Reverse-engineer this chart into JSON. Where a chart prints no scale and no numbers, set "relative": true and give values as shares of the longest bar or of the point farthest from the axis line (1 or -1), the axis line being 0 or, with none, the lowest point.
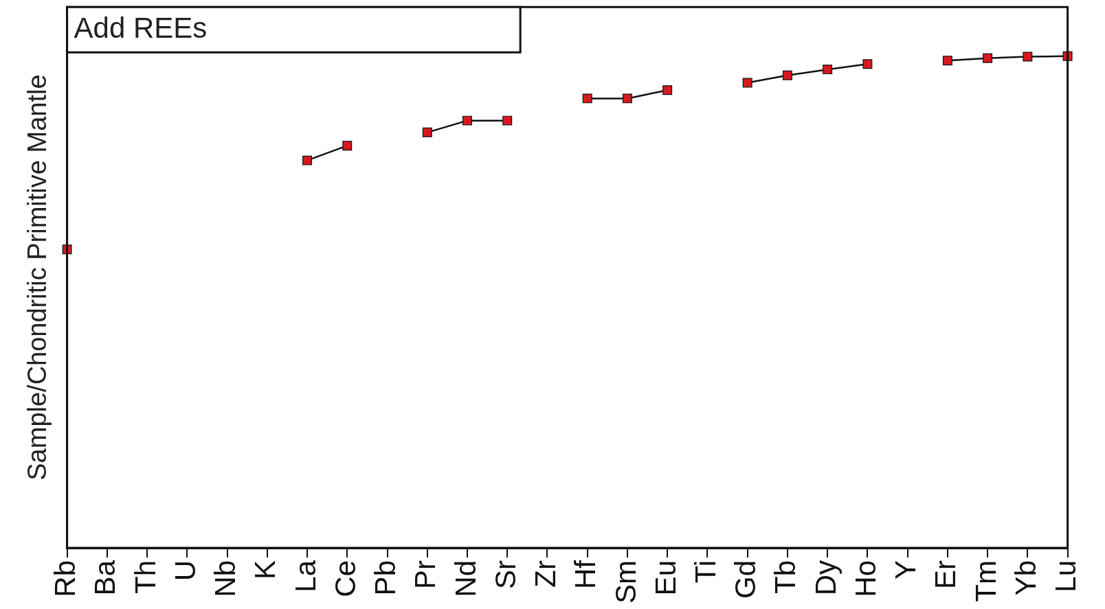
{
  "chart_data": {
    "type": "line",
    "relative": true,
    "ylabel": "Sample/Chondritic Primitive Mantle",
    "annotations": [
      "Add REEs"
    ],
    "categories": [
      "Rb",
      "Ba",
      "Th",
      "U",
      "Nb",
      "K",
      "La",
      "Ce",
      "Pb",
      "Pr",
      "Nd",
      "Sr",
      "Zr",
      "Hf",
      "Sm",
      "Eu",
      "Ti",
      "Gd",
      "Tb",
      "Dy",
      "Ho",
      "Y",
      "Er",
      "Tm",
      "Yb",
      "Lu"
    ],
    "series": [
      {
        "color": "#d7191f",
        "values": [
          0.607,
          null,
          null,
          null,
          null,
          null,
          0.788,
          0.818,
          null,
          0.845,
          0.869,
          0.869,
          null,
          0.914,
          0.914,
          0.931,
          null,
          0.946,
          0.961,
          0.973,
          0.984,
          null,
          0.991,
          0.996,
          0.999,
          1
        ]
      }
    ],
    "marker": "square",
    "line_style": "solid",
    "grid": false,
    "legend": false
  }
}
